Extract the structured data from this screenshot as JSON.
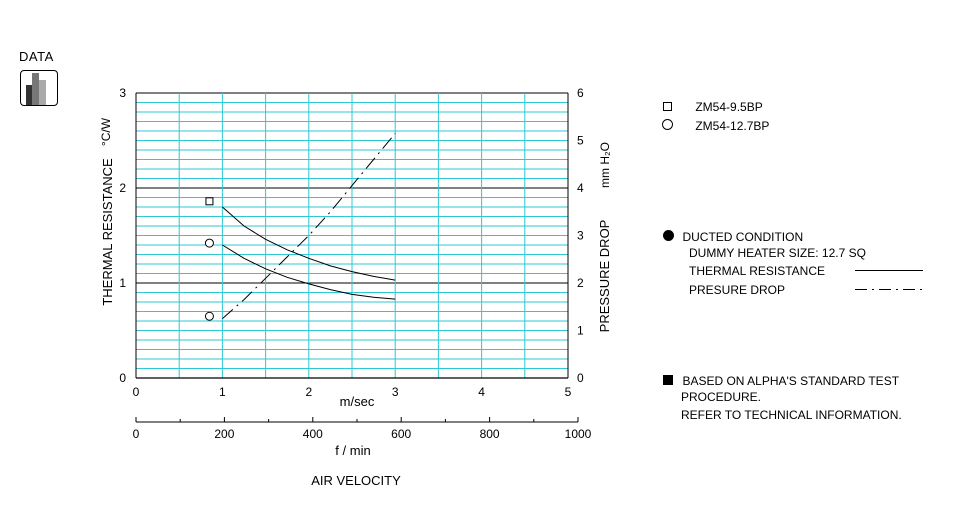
{
  "badge": {
    "label": "DATA",
    "icon": "bar-chart-icon"
  },
  "legend": {
    "series": [
      {
        "symbol": "square",
        "label": "ZM54-9.5BP"
      },
      {
        "symbol": "circle",
        "label": "ZM54-12.7BP"
      }
    ]
  },
  "notes": {
    "ducted_title": "DUCTED CONDITION",
    "heater": "DUMMY HEATER SIZE:  12.7 SQ",
    "thermal_line": "THERMAL RESISTANCE",
    "pressure_line": "PRESURE DROP",
    "standard_1": "BASED ON ALPHA'S STANDARD TEST",
    "standard_2": "PROCEDURE.",
    "standard_3": "REFER TO TECHNICAL INFORMATION."
  },
  "colors": {
    "grid": "#2ec8d4",
    "axis": "#000000"
  },
  "chart_data": {
    "type": "line",
    "title": "",
    "ylabel": "THERMAL  RESISTANCE",
    "yunit": "°C/W",
    "y2label": "PRESSURE  DROP",
    "y2unit": "mm H₂O",
    "xlabel": "m/sec",
    "x2label": "f  /  min",
    "footer": "AIR VELOCITY",
    "xlim": [
      0,
      5
    ],
    "ylim": [
      0,
      3
    ],
    "y2lim": [
      0,
      6
    ],
    "x2lim": [
      0,
      1000
    ],
    "x_ticks": [
      0,
      1,
      2,
      3,
      4,
      5
    ],
    "y_ticks": [
      0,
      1,
      2,
      3
    ],
    "y2_ticks": [
      0,
      1,
      2,
      3,
      4,
      5,
      6
    ],
    "x2_ticks": [
      0,
      200,
      400,
      600,
      800,
      1000
    ],
    "grid": true,
    "series": [
      {
        "name": "ZM54-9.5BP",
        "kind": "thermal",
        "style": "solid",
        "x": [
          1.0,
          1.25,
          1.5,
          1.75,
          2.0,
          2.25,
          2.5,
          2.75,
          3.0
        ],
        "y": [
          1.8,
          1.6,
          1.46,
          1.35,
          1.26,
          1.18,
          1.12,
          1.07,
          1.03
        ],
        "marker": "square",
        "marker_at": [
          0.85,
          1.86
        ]
      },
      {
        "name": "ZM54-12.7BP",
        "kind": "thermal",
        "style": "solid",
        "x": [
          1.0,
          1.25,
          1.5,
          1.75,
          2.0,
          2.25,
          2.5,
          2.75,
          3.0
        ],
        "y": [
          1.4,
          1.26,
          1.15,
          1.06,
          0.99,
          0.93,
          0.88,
          0.85,
          0.83
        ],
        "marker": "circle",
        "marker_at": [
          0.85,
          1.42
        ]
      },
      {
        "name": "ZM54-12.7BP",
        "kind": "pressure",
        "style": "dashdot",
        "x": [
          1.0,
          1.25,
          1.5,
          1.75,
          2.0,
          2.25,
          2.5,
          2.75,
          3.0
        ],
        "y2": [
          1.25,
          1.65,
          2.1,
          2.55,
          3.0,
          3.5,
          4.05,
          4.6,
          5.15
        ],
        "marker": "circle",
        "marker_at": [
          0.85,
          1.3
        ]
      }
    ]
  }
}
